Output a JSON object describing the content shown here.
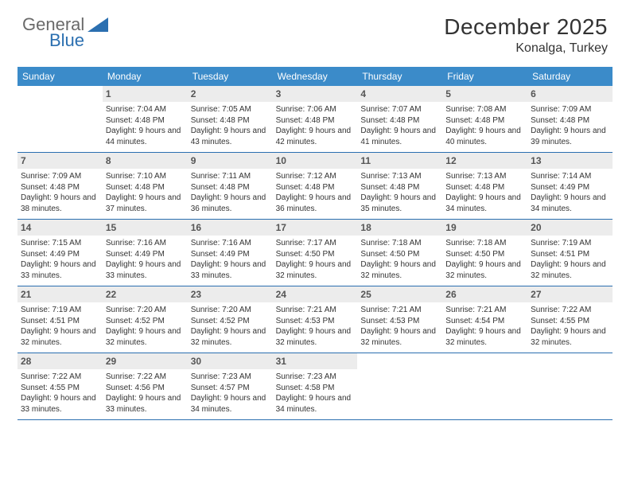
{
  "brand": {
    "part1": "General",
    "part2": "Blue"
  },
  "title": "December 2025",
  "location": "Konalga, Turkey",
  "colors": {
    "header_bg": "#3b8bc9",
    "week_border": "#2b6fb0",
    "daynum_bg": "#ececec",
    "logo_gray": "#6a6a6a",
    "logo_blue": "#2b6fb0",
    "text": "#333333",
    "bg": "#ffffff"
  },
  "typography": {
    "title_fontsize": 28,
    "location_fontsize": 16,
    "dayhead_fontsize": 12,
    "daynum_fontsize": 12,
    "info_fontsize": 10
  },
  "day_labels": [
    "Sunday",
    "Monday",
    "Tuesday",
    "Wednesday",
    "Thursday",
    "Friday",
    "Saturday"
  ],
  "weeks": [
    [
      {
        "n": "",
        "sunrise": "",
        "sunset": "",
        "daylight": ""
      },
      {
        "n": "1",
        "sunrise": "Sunrise: 7:04 AM",
        "sunset": "Sunset: 4:48 PM",
        "daylight": "Daylight: 9 hours and 44 minutes."
      },
      {
        "n": "2",
        "sunrise": "Sunrise: 7:05 AM",
        "sunset": "Sunset: 4:48 PM",
        "daylight": "Daylight: 9 hours and 43 minutes."
      },
      {
        "n": "3",
        "sunrise": "Sunrise: 7:06 AM",
        "sunset": "Sunset: 4:48 PM",
        "daylight": "Daylight: 9 hours and 42 minutes."
      },
      {
        "n": "4",
        "sunrise": "Sunrise: 7:07 AM",
        "sunset": "Sunset: 4:48 PM",
        "daylight": "Daylight: 9 hours and 41 minutes."
      },
      {
        "n": "5",
        "sunrise": "Sunrise: 7:08 AM",
        "sunset": "Sunset: 4:48 PM",
        "daylight": "Daylight: 9 hours and 40 minutes."
      },
      {
        "n": "6",
        "sunrise": "Sunrise: 7:09 AM",
        "sunset": "Sunset: 4:48 PM",
        "daylight": "Daylight: 9 hours and 39 minutes."
      }
    ],
    [
      {
        "n": "7",
        "sunrise": "Sunrise: 7:09 AM",
        "sunset": "Sunset: 4:48 PM",
        "daylight": "Daylight: 9 hours and 38 minutes."
      },
      {
        "n": "8",
        "sunrise": "Sunrise: 7:10 AM",
        "sunset": "Sunset: 4:48 PM",
        "daylight": "Daylight: 9 hours and 37 minutes."
      },
      {
        "n": "9",
        "sunrise": "Sunrise: 7:11 AM",
        "sunset": "Sunset: 4:48 PM",
        "daylight": "Daylight: 9 hours and 36 minutes."
      },
      {
        "n": "10",
        "sunrise": "Sunrise: 7:12 AM",
        "sunset": "Sunset: 4:48 PM",
        "daylight": "Daylight: 9 hours and 36 minutes."
      },
      {
        "n": "11",
        "sunrise": "Sunrise: 7:13 AM",
        "sunset": "Sunset: 4:48 PM",
        "daylight": "Daylight: 9 hours and 35 minutes."
      },
      {
        "n": "12",
        "sunrise": "Sunrise: 7:13 AM",
        "sunset": "Sunset: 4:48 PM",
        "daylight": "Daylight: 9 hours and 34 minutes."
      },
      {
        "n": "13",
        "sunrise": "Sunrise: 7:14 AM",
        "sunset": "Sunset: 4:49 PM",
        "daylight": "Daylight: 9 hours and 34 minutes."
      }
    ],
    [
      {
        "n": "14",
        "sunrise": "Sunrise: 7:15 AM",
        "sunset": "Sunset: 4:49 PM",
        "daylight": "Daylight: 9 hours and 33 minutes."
      },
      {
        "n": "15",
        "sunrise": "Sunrise: 7:16 AM",
        "sunset": "Sunset: 4:49 PM",
        "daylight": "Daylight: 9 hours and 33 minutes."
      },
      {
        "n": "16",
        "sunrise": "Sunrise: 7:16 AM",
        "sunset": "Sunset: 4:49 PM",
        "daylight": "Daylight: 9 hours and 33 minutes."
      },
      {
        "n": "17",
        "sunrise": "Sunrise: 7:17 AM",
        "sunset": "Sunset: 4:50 PM",
        "daylight": "Daylight: 9 hours and 32 minutes."
      },
      {
        "n": "18",
        "sunrise": "Sunrise: 7:18 AM",
        "sunset": "Sunset: 4:50 PM",
        "daylight": "Daylight: 9 hours and 32 minutes."
      },
      {
        "n": "19",
        "sunrise": "Sunrise: 7:18 AM",
        "sunset": "Sunset: 4:50 PM",
        "daylight": "Daylight: 9 hours and 32 minutes."
      },
      {
        "n": "20",
        "sunrise": "Sunrise: 7:19 AM",
        "sunset": "Sunset: 4:51 PM",
        "daylight": "Daylight: 9 hours and 32 minutes."
      }
    ],
    [
      {
        "n": "21",
        "sunrise": "Sunrise: 7:19 AM",
        "sunset": "Sunset: 4:51 PM",
        "daylight": "Daylight: 9 hours and 32 minutes."
      },
      {
        "n": "22",
        "sunrise": "Sunrise: 7:20 AM",
        "sunset": "Sunset: 4:52 PM",
        "daylight": "Daylight: 9 hours and 32 minutes."
      },
      {
        "n": "23",
        "sunrise": "Sunrise: 7:20 AM",
        "sunset": "Sunset: 4:52 PM",
        "daylight": "Daylight: 9 hours and 32 minutes."
      },
      {
        "n": "24",
        "sunrise": "Sunrise: 7:21 AM",
        "sunset": "Sunset: 4:53 PM",
        "daylight": "Daylight: 9 hours and 32 minutes."
      },
      {
        "n": "25",
        "sunrise": "Sunrise: 7:21 AM",
        "sunset": "Sunset: 4:53 PM",
        "daylight": "Daylight: 9 hours and 32 minutes."
      },
      {
        "n": "26",
        "sunrise": "Sunrise: 7:21 AM",
        "sunset": "Sunset: 4:54 PM",
        "daylight": "Daylight: 9 hours and 32 minutes."
      },
      {
        "n": "27",
        "sunrise": "Sunrise: 7:22 AM",
        "sunset": "Sunset: 4:55 PM",
        "daylight": "Daylight: 9 hours and 32 minutes."
      }
    ],
    [
      {
        "n": "28",
        "sunrise": "Sunrise: 7:22 AM",
        "sunset": "Sunset: 4:55 PM",
        "daylight": "Daylight: 9 hours and 33 minutes."
      },
      {
        "n": "29",
        "sunrise": "Sunrise: 7:22 AM",
        "sunset": "Sunset: 4:56 PM",
        "daylight": "Daylight: 9 hours and 33 minutes."
      },
      {
        "n": "30",
        "sunrise": "Sunrise: 7:23 AM",
        "sunset": "Sunset: 4:57 PM",
        "daylight": "Daylight: 9 hours and 34 minutes."
      },
      {
        "n": "31",
        "sunrise": "Sunrise: 7:23 AM",
        "sunset": "Sunset: 4:58 PM",
        "daylight": "Daylight: 9 hours and 34 minutes."
      },
      {
        "n": "",
        "sunrise": "",
        "sunset": "",
        "daylight": ""
      },
      {
        "n": "",
        "sunrise": "",
        "sunset": "",
        "daylight": ""
      },
      {
        "n": "",
        "sunrise": "",
        "sunset": "",
        "daylight": ""
      }
    ]
  ]
}
